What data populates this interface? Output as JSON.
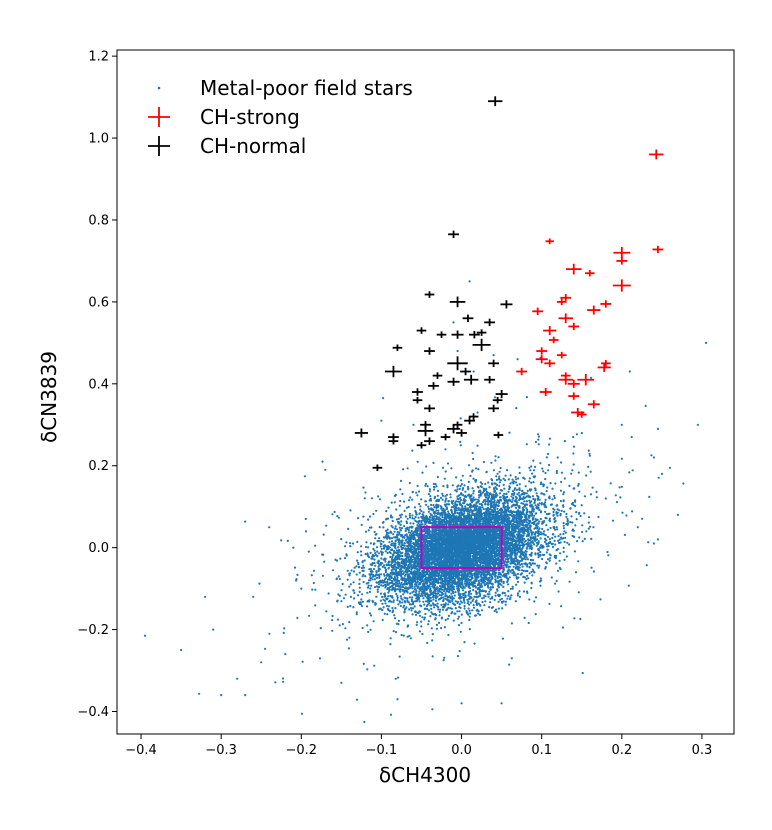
{
  "chart_data": {
    "type": "scatter",
    "title": "",
    "xlabel": "δCH4300",
    "ylabel": "δCN3839",
    "xlim": [
      -0.43,
      0.34
    ],
    "ylim": [
      -0.455,
      1.215
    ],
    "x_ticks": [
      -0.4,
      -0.3,
      -0.2,
      -0.1,
      0.0,
      0.1,
      0.2,
      0.3
    ],
    "x_tick_labels": [
      "−0.4",
      "−0.3",
      "−0.2",
      "−0.1",
      "0.0",
      "0.1",
      "0.2",
      "0.3"
    ],
    "y_ticks": [
      -0.4,
      -0.2,
      0.0,
      0.2,
      0.4,
      0.6,
      0.8,
      1.0,
      1.2
    ],
    "y_tick_labels": [
      "−0.4",
      "−0.2",
      "0.0",
      "0.2",
      "0.4",
      "0.6",
      "0.8",
      "1.0",
      "1.2"
    ],
    "grid": false,
    "legend_position": "top-left",
    "legend": [
      {
        "label": "Metal-poor field stars",
        "marker": "dot",
        "color": "#1f77b4"
      },
      {
        "label": "CH-strong",
        "marker": "cross",
        "color": "#ff0000"
      },
      {
        "label": "CH-normal",
        "marker": "cross",
        "color": "#000000"
      }
    ],
    "field_stars": {
      "name": "Metal-poor field stars",
      "color": "#1f77b4",
      "count": 9000,
      "center": [
        0.0,
        0.0
      ],
      "std": [
        0.05,
        0.065
      ],
      "correlation": 0.4,
      "outliers": [
        [
          -0.395,
          -0.215
        ],
        [
          -0.35,
          -0.25
        ],
        [
          -0.32,
          -0.12
        ],
        [
          -0.3,
          -0.36
        ],
        [
          -0.28,
          -0.32
        ],
        [
          -0.27,
          -0.36
        ],
        [
          -0.25,
          -0.28
        ],
        [
          -0.22,
          -0.26
        ],
        [
          -0.21,
          0.0
        ],
        [
          -0.2,
          -0.1
        ],
        [
          -0.17,
          0.19
        ],
        [
          -0.15,
          -0.33
        ],
        [
          -0.14,
          -0.22
        ],
        [
          -0.1,
          0.31
        ],
        [
          -0.08,
          -0.37
        ],
        [
          -0.06,
          0.3
        ],
        [
          0.0,
          -0.38
        ],
        [
          0.02,
          0.33
        ],
        [
          0.05,
          -0.38
        ],
        [
          0.08,
          0.15
        ],
        [
          0.12,
          0.22
        ],
        [
          0.15,
          0.28
        ],
        [
          0.18,
          0.12
        ],
        [
          0.2,
          0.3
        ],
        [
          0.22,
          0.05
        ],
        [
          0.24,
          0.22
        ],
        [
          0.245,
          0.29
        ],
        [
          0.25,
          0.18
        ],
        [
          0.26,
          0.195
        ],
        [
          0.295,
          0.3
        ],
        [
          0.305,
          0.5
        ],
        [
          0.21,
          0.43
        ],
        [
          0.24,
          0.01
        ],
        [
          0.245,
          0.02
        ],
        [
          0.27,
          0.08
        ],
        [
          -0.24,
          0.05
        ],
        [
          -0.26,
          -0.12
        ],
        [
          -0.31,
          -0.2
        ],
        [
          0.01,
          0.65
        ],
        [
          -0.01,
          0.55
        ],
        [
          0.07,
          0.46
        ],
        [
          0.04,
          0.47
        ],
        [
          -0.005,
          0.48
        ],
        [
          -0.02,
          0.24
        ],
        [
          0.015,
          0.43
        ]
      ]
    },
    "box": {
      "color": "#bf00bf",
      "x": [
        -0.05,
        0.05
      ],
      "y": [
        -0.05,
        0.05
      ]
    },
    "series": [
      {
        "name": "CH-strong",
        "color": "#ff0000",
        "points": [
          [
            0.243,
            0.96,
            0.012
          ],
          [
            0.245,
            0.728,
            0.009
          ],
          [
            0.2,
            0.72,
            0.014
          ],
          [
            0.2,
            0.7,
            0.009
          ],
          [
            0.2,
            0.64,
            0.015
          ],
          [
            0.11,
            0.748,
            0.007
          ],
          [
            0.14,
            0.68,
            0.013
          ],
          [
            0.16,
            0.67,
            0.008
          ],
          [
            0.13,
            0.61,
            0.009
          ],
          [
            0.125,
            0.6,
            0.008
          ],
          [
            0.095,
            0.577,
            0.009
          ],
          [
            0.165,
            0.58,
            0.011
          ],
          [
            0.18,
            0.595,
            0.009
          ],
          [
            0.13,
            0.56,
            0.012
          ],
          [
            0.14,
            0.54,
            0.009
          ],
          [
            0.11,
            0.53,
            0.011
          ],
          [
            0.115,
            0.507,
            0.008
          ],
          [
            0.1,
            0.48,
            0.009
          ],
          [
            0.1,
            0.46,
            0.01
          ],
          [
            0.11,
            0.45,
            0.009
          ],
          [
            0.125,
            0.47,
            0.008
          ],
          [
            0.075,
            0.43,
            0.009
          ],
          [
            0.13,
            0.41,
            0.012
          ],
          [
            0.13,
            0.42,
            0.008
          ],
          [
            0.14,
            0.4,
            0.01
          ],
          [
            0.155,
            0.41,
            0.014
          ],
          [
            0.178,
            0.44,
            0.011
          ],
          [
            0.18,
            0.45,
            0.008
          ],
          [
            0.105,
            0.38,
            0.01
          ],
          [
            0.14,
            0.37,
            0.009
          ],
          [
            0.145,
            0.33,
            0.011
          ],
          [
            0.15,
            0.325,
            0.008
          ],
          [
            0.165,
            0.35,
            0.01
          ]
        ]
      },
      {
        "name": "CH-normal",
        "color": "#000000",
        "points": [
          [
            0.042,
            1.09,
            0.012
          ],
          [
            -0.01,
            0.765,
            0.009
          ],
          [
            -0.04,
            0.618,
            0.008
          ],
          [
            -0.005,
            0.6,
            0.013
          ],
          [
            0.008,
            0.56,
            0.009
          ],
          [
            0.056,
            0.594,
            0.01
          ],
          [
            -0.05,
            0.53,
            0.008
          ],
          [
            -0.005,
            0.52,
            0.01
          ],
          [
            0.016,
            0.52,
            0.009
          ],
          [
            0.025,
            0.525,
            0.008
          ],
          [
            0.035,
            0.55,
            0.009
          ],
          [
            -0.025,
            0.52,
            0.008
          ],
          [
            0.025,
            0.495,
            0.015
          ],
          [
            -0.04,
            0.48,
            0.009
          ],
          [
            -0.08,
            0.488,
            0.008
          ],
          [
            -0.005,
            0.45,
            0.017
          ],
          [
            0.04,
            0.45,
            0.009
          ],
          [
            -0.085,
            0.43,
            0.014
          ],
          [
            -0.03,
            0.42,
            0.008
          ],
          [
            -0.01,
            0.405,
            0.01
          ],
          [
            0.005,
            0.43,
            0.009
          ],
          [
            0.012,
            0.41,
            0.012
          ],
          [
            0.035,
            0.41,
            0.009
          ],
          [
            -0.035,
            0.395,
            0.009
          ],
          [
            -0.055,
            0.38,
            0.009
          ],
          [
            -0.055,
            0.36,
            0.008
          ],
          [
            0.05,
            0.375,
            0.01
          ],
          [
            0.045,
            0.36,
            0.008
          ],
          [
            0.04,
            0.34,
            0.009
          ],
          [
            -0.04,
            0.34,
            0.009
          ],
          [
            -0.045,
            0.3,
            0.009
          ],
          [
            -0.045,
            0.285,
            0.013
          ],
          [
            -0.01,
            0.29,
            0.011
          ],
          [
            -0.005,
            0.3,
            0.008
          ],
          [
            0.0,
            0.28,
            0.009
          ],
          [
            0.01,
            0.31,
            0.009
          ],
          [
            0.015,
            0.32,
            0.008
          ],
          [
            -0.02,
            0.27,
            0.008
          ],
          [
            -0.04,
            0.26,
            0.009
          ],
          [
            -0.05,
            0.25,
            0.008
          ],
          [
            -0.085,
            0.27,
            0.009
          ],
          [
            -0.085,
            0.26,
            0.008
          ],
          [
            -0.125,
            0.28,
            0.011
          ],
          [
            -0.105,
            0.195,
            0.008
          ],
          [
            0.046,
            0.275,
            0.008
          ]
        ]
      }
    ]
  }
}
